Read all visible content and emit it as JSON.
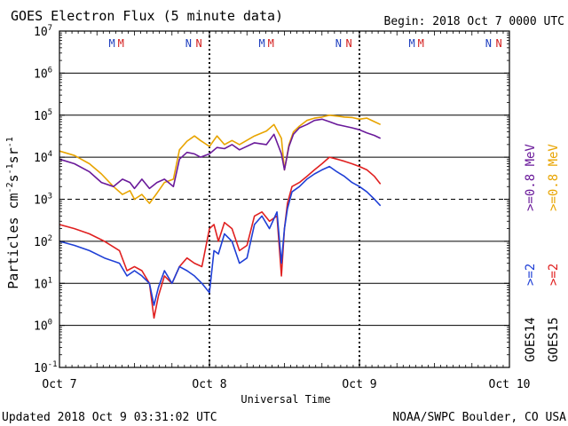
{
  "chart_data": {
    "type": "line",
    "title": "GOES Electron Flux (5 minute data)",
    "begin_label": "Begin: 2018 Oct 7 0000 UTC",
    "xlabel": "Universal Time",
    "ylabel_parts": [
      "Particles cm",
      "-2",
      "s",
      "-1",
      "sr",
      "-1"
    ],
    "x_unit": "days since Oct 7 0000 UTC",
    "x_ticks": [
      {
        "x": 0,
        "label": "Oct 7"
      },
      {
        "x": 1,
        "label": "Oct 8"
      },
      {
        "x": 2,
        "label": "Oct 9"
      },
      {
        "x": 3,
        "label": "Oct 10"
      }
    ],
    "xlim": [
      0,
      3
    ],
    "y_scale": "log",
    "ylim": [
      0.1,
      10000000
    ],
    "y_ticks": [
      {
        "exp": 7,
        "label": "10",
        "sup": "7"
      },
      {
        "exp": 6,
        "label": "10",
        "sup": "6"
      },
      {
        "exp": 5,
        "label": "10",
        "sup": "5"
      },
      {
        "exp": 4,
        "label": "10",
        "sup": "4"
      },
      {
        "exp": 3,
        "label": "10",
        "sup": "3"
      },
      {
        "exp": 2,
        "label": "10",
        "sup": "2"
      },
      {
        "exp": 1,
        "label": "10",
        "sup": "1"
      },
      {
        "exp": 0,
        "label": "10",
        "sup": "0"
      },
      {
        "exp": -1,
        "label": "10",
        "sup": "-1"
      }
    ],
    "threshold_line": {
      "value": 1000,
      "style": "dashed"
    },
    "day_markers": [
      1,
      2
    ],
    "orbit_markers": [
      {
        "x": 0.35,
        "label": "M",
        "color": "#1f3fbf"
      },
      {
        "x": 0.41,
        "label": "M",
        "color": "#d42020"
      },
      {
        "x": 0.86,
        "label": "N",
        "color": "#1f3fbf"
      },
      {
        "x": 0.93,
        "label": "N",
        "color": "#d42020"
      },
      {
        "x": 1.35,
        "label": "M",
        "color": "#1f3fbf"
      },
      {
        "x": 1.41,
        "label": "M",
        "color": "#d42020"
      },
      {
        "x": 1.86,
        "label": "N",
        "color": "#1f3fbf"
      },
      {
        "x": 1.93,
        "label": "N",
        "color": "#d42020"
      },
      {
        "x": 2.35,
        "label": "M",
        "color": "#1f3fbf"
      },
      {
        "x": 2.41,
        "label": "M",
        "color": "#d42020"
      },
      {
        "x": 2.86,
        "label": "N",
        "color": "#1f3fbf"
      },
      {
        "x": 2.93,
        "label": "N",
        "color": "#d42020"
      }
    ],
    "legend": {
      "placement": "right",
      "groups": [
        {
          "satellite": "GOES15",
          "items": [
            {
              "text": ">=2",
              "color": "#e02020"
            },
            {
              "text": ">=0.8 MeV",
              "color": "#e8a400"
            }
          ]
        },
        {
          "satellite": "GOES14",
          "items": [
            {
              "text": ">=2",
              "color": "#1f3fd6"
            },
            {
              "text": ">=0.8 MeV",
              "color": "#6a1a9a"
            }
          ]
        }
      ]
    },
    "series": [
      {
        "name": "GOES15 >=0.8 MeV",
        "color": "#e8a400",
        "x": [
          0,
          0.1,
          0.2,
          0.28,
          0.36,
          0.42,
          0.47,
          0.5,
          0.55,
          0.6,
          0.65,
          0.7,
          0.76,
          0.8,
          0.85,
          0.9,
          0.94,
          1,
          1.05,
          1.1,
          1.15,
          1.2,
          1.3,
          1.38,
          1.43,
          1.48,
          1.5,
          1.53,
          1.56,
          1.6,
          1.65,
          1.7,
          1.75,
          1.8,
          1.85,
          1.9,
          1.95,
          2,
          2.05,
          2.1,
          2.14
        ],
        "y": [
          14000,
          11000,
          7000,
          4000,
          2000,
          1300,
          1600,
          1000,
          1300,
          800,
          1400,
          2500,
          3000,
          15000,
          24000,
          32000,
          25000,
          18000,
          32000,
          20000,
          25000,
          20000,
          32000,
          42000,
          60000,
          28000,
          5000,
          20000,
          40000,
          55000,
          75000,
          85000,
          90000,
          100000,
          95000,
          90000,
          88000,
          80000,
          85000,
          70000,
          60000
        ]
      },
      {
        "name": "GOES14 >=0.8 MeV",
        "color": "#6a1a9a",
        "x": [
          0,
          0.1,
          0.2,
          0.28,
          0.36,
          0.42,
          0.47,
          0.5,
          0.55,
          0.6,
          0.65,
          0.7,
          0.76,
          0.8,
          0.85,
          0.9,
          0.94,
          1,
          1.05,
          1.1,
          1.15,
          1.2,
          1.3,
          1.38,
          1.43,
          1.48,
          1.5,
          1.53,
          1.56,
          1.6,
          1.65,
          1.7,
          1.75,
          1.8,
          1.85,
          1.9,
          1.95,
          2,
          2.05,
          2.1,
          2.14
        ],
        "y": [
          9000,
          7000,
          4500,
          2500,
          2000,
          3000,
          2500,
          1800,
          3000,
          1800,
          2500,
          3000,
          2000,
          9000,
          13000,
          12000,
          10000,
          12000,
          17000,
          16000,
          20000,
          15000,
          22000,
          20000,
          35000,
          12000,
          5000,
          18000,
          35000,
          50000,
          60000,
          75000,
          80000,
          70000,
          60000,
          55000,
          50000,
          45000,
          38000,
          33000,
          28000
        ]
      },
      {
        "name": "GOES15 >=2 MeV",
        "color": "#e02020",
        "x": [
          0,
          0.1,
          0.2,
          0.3,
          0.4,
          0.45,
          0.5,
          0.55,
          0.6,
          0.63,
          0.66,
          0.7,
          0.75,
          0.8,
          0.85,
          0.9,
          0.95,
          1,
          1.03,
          1.06,
          1.1,
          1.15,
          1.2,
          1.25,
          1.3,
          1.35,
          1.4,
          1.45,
          1.48,
          1.5,
          1.52,
          1.55,
          1.6,
          1.65,
          1.7,
          1.75,
          1.8,
          1.85,
          1.9,
          1.95,
          2,
          2.05,
          2.1,
          2.14
        ],
        "y": [
          250,
          200,
          150,
          100,
          60,
          20,
          25,
          20,
          10,
          1.5,
          5,
          15,
          10,
          25,
          40,
          30,
          25,
          200,
          250,
          100,
          280,
          200,
          60,
          80,
          400,
          500,
          300,
          400,
          15,
          200,
          800,
          2000,
          2500,
          3500,
          5000,
          7000,
          10000,
          9000,
          8000,
          7000,
          6000,
          5000,
          3500,
          2300
        ]
      },
      {
        "name": "GOES14 >=2 MeV",
        "color": "#1f3fd6",
        "x": [
          0,
          0.1,
          0.2,
          0.3,
          0.4,
          0.45,
          0.5,
          0.55,
          0.6,
          0.63,
          0.66,
          0.7,
          0.75,
          0.8,
          0.85,
          0.9,
          0.95,
          1,
          1.03,
          1.06,
          1.1,
          1.15,
          1.2,
          1.25,
          1.3,
          1.35,
          1.4,
          1.45,
          1.48,
          1.5,
          1.52,
          1.55,
          1.6,
          1.65,
          1.7,
          1.75,
          1.8,
          1.85,
          1.9,
          1.95,
          2,
          2.05,
          2.1,
          2.14
        ],
        "y": [
          100,
          80,
          60,
          40,
          30,
          15,
          20,
          15,
          10,
          3,
          8,
          20,
          10,
          25,
          20,
          15,
          10,
          6,
          60,
          50,
          150,
          100,
          30,
          40,
          250,
          400,
          200,
          500,
          30,
          200,
          600,
          1500,
          2000,
          3000,
          4000,
          5000,
          6000,
          4500,
          3500,
          2500,
          2000,
          1500,
          1000,
          700
        ]
      }
    ]
  },
  "footer": {
    "updated": "Updated 2018 Oct  9 03:31:02 UTC",
    "credit": "NOAA/SWPC Boulder, CO USA"
  }
}
